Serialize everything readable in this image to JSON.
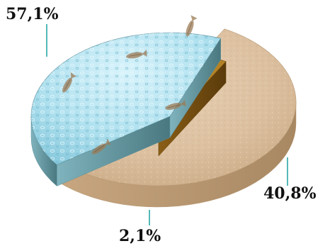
{
  "chart_data": {
    "type": "pie",
    "style": "3d-exploded",
    "slices": [
      {
        "label": "57,1%",
        "value": 57.1,
        "color": "#dcc0a0",
        "side_color": "#b89a76",
        "texture": "sand with fossil fish"
      },
      {
        "label": "40,8%",
        "value": 40.8,
        "color": "#aee0ee",
        "side_color": "#5d8f99",
        "texture": "water bubbles"
      },
      {
        "label": "2,1%",
        "value": 2.1,
        "color": "#b48224",
        "side_color": "#6e4a10",
        "texture": "amber"
      }
    ],
    "legend": "none"
  }
}
